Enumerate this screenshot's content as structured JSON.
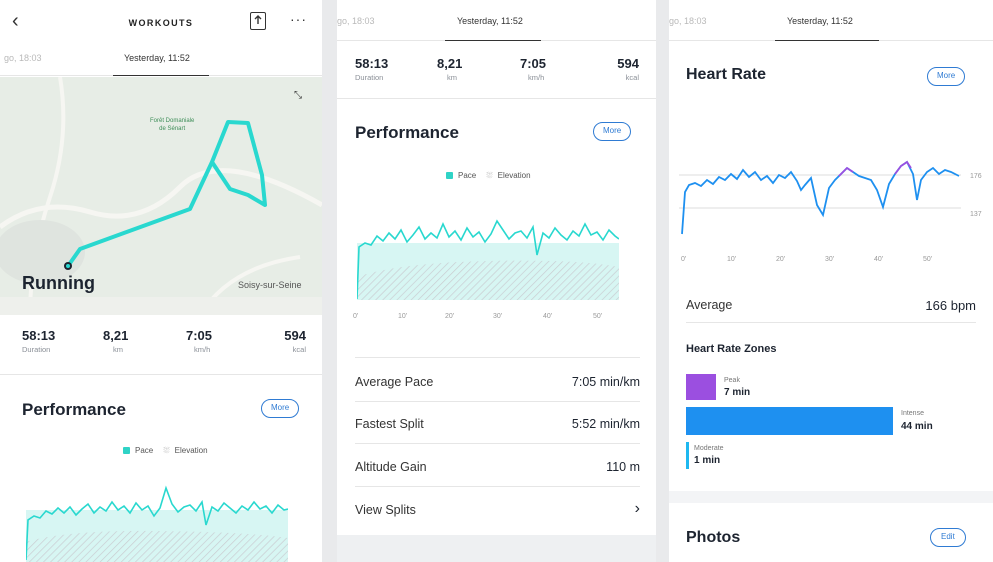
{
  "nav": {
    "title": "WORKOUTS",
    "back_icon": "chevron-left-icon",
    "share_icon": "share-icon",
    "more_icon": "more-dots-icon"
  },
  "dates": {
    "previous": "go, 18:03",
    "current": "Yesterday, 11:52"
  },
  "map": {
    "activity": "Running",
    "town": "Soisy-sur-Seine",
    "forest_line1": "Forêt Domaniale",
    "forest_line2": "de Sénart"
  },
  "stats": [
    {
      "value": "58:13",
      "label": "Duration"
    },
    {
      "value": "8,21",
      "label": "km"
    },
    {
      "value": "7:05",
      "label": "km/h"
    },
    {
      "value": "594",
      "label": "kcal"
    }
  ],
  "performance": {
    "title": "Performance",
    "more_label": "More",
    "legend_pace": "Pace",
    "legend_elevation": "Elevation",
    "x_ticks": [
      "0'",
      "10'",
      "20'",
      "30'",
      "40'",
      "50'"
    ],
    "rows": [
      {
        "label": "Average Pace",
        "value": "7:05 min/km"
      },
      {
        "label": "Fastest Split",
        "value": "5:52 min/km"
      },
      {
        "label": "Altitude Gain",
        "value": "110 m"
      },
      {
        "label": "View Splits",
        "value": "›"
      }
    ]
  },
  "heart_rate": {
    "title": "Heart Rate",
    "more_label": "More",
    "y_ticks": [
      "176",
      "137"
    ],
    "x_ticks": [
      "0'",
      "10'",
      "20'",
      "30'",
      "40'",
      "50'"
    ],
    "average_label": "Average",
    "average_value": "166 bpm",
    "zones_title": "Heart Rate Zones",
    "zones": [
      {
        "name": "Peak",
        "minutes": "7 min",
        "fraction": 0.135,
        "color": "#9b4fe0"
      },
      {
        "name": "Intense",
        "minutes": "44 min",
        "fraction": 0.846,
        "color": "#1e90f0"
      },
      {
        "name": "Moderate",
        "minutes": "1 min",
        "fraction": 0.019,
        "color": "#1eb8f0"
      }
    ]
  },
  "photos": {
    "title": "Photos",
    "edit_label": "Edit"
  },
  "colors": {
    "accent": "#2f7bd3",
    "pace": "#2fd3c6",
    "heart": "#1e90f0",
    "peak": "#9b4fe0"
  }
}
